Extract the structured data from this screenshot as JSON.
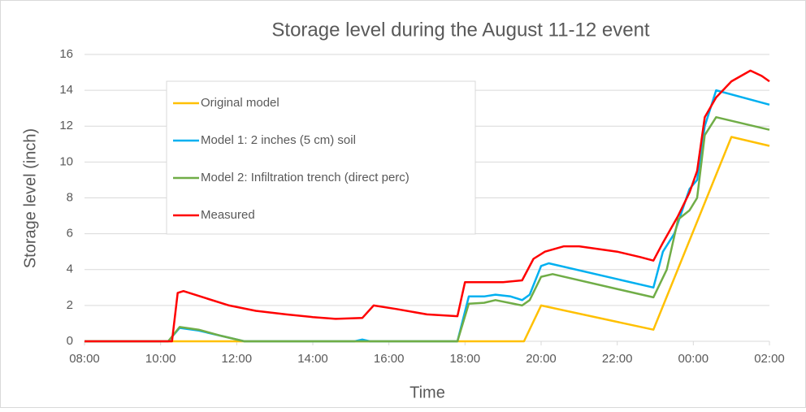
{
  "chart_data": {
    "type": "line",
    "title": "Storage level during the August 11-12 event",
    "x_label": "Time",
    "y_label": "Storage level (inch)",
    "xlim": [
      8,
      26
    ],
    "xticks": [
      {
        "value": 8,
        "label": "08:00"
      },
      {
        "value": 10,
        "label": "10:00"
      },
      {
        "value": 12,
        "label": "12:00"
      },
      {
        "value": 14,
        "label": "14:00"
      },
      {
        "value": 16,
        "label": "16:00"
      },
      {
        "value": 18,
        "label": "18:00"
      },
      {
        "value": 20,
        "label": "20:00"
      },
      {
        "value": 22,
        "label": "22:00"
      },
      {
        "value": 24,
        "label": "00:00"
      },
      {
        "value": 26,
        "label": "02:00"
      }
    ],
    "ylim": [
      0,
      16
    ],
    "yticks": [
      0,
      2,
      4,
      6,
      8,
      10,
      12,
      14,
      16
    ],
    "grid": true,
    "series": [
      {
        "name": "Original model",
        "color": "#ffc000",
        "x": [
          8,
          19.55,
          20.0,
          22.95,
          25.0,
          26
        ],
        "values": [
          0,
          0,
          2.0,
          0.65,
          11.4,
          10.9
        ]
      },
      {
        "name": "Model 1: 2 inches (5 cm) soil",
        "color": "#00b0f0",
        "x": [
          8,
          10.2,
          10.5,
          11,
          11.6,
          12.2,
          15.1,
          15.3,
          15.5,
          17.8,
          18.1,
          18.5,
          18.8,
          19.2,
          19.5,
          19.7,
          20.0,
          20.2,
          22.95,
          23.2,
          23.5,
          23.9,
          24.1,
          24.3,
          24.6,
          26
        ],
        "values": [
          0,
          0,
          0.75,
          0.6,
          0.3,
          0,
          0,
          0.1,
          0,
          0,
          2.5,
          2.5,
          2.6,
          2.5,
          2.3,
          2.6,
          4.2,
          4.35,
          3.0,
          5.0,
          6.0,
          8.5,
          9.0,
          12,
          14.0,
          13.2
        ]
      },
      {
        "name": "Model 2: Infiltration trench (direct perc)",
        "color": "#70ad47",
        "x": [
          8,
          10.2,
          10.5,
          11,
          11.6,
          12.2,
          17.8,
          18.1,
          18.5,
          18.8,
          19.5,
          19.7,
          20.0,
          20.3,
          22.95,
          23.3,
          23.6,
          23.9,
          24.1,
          24.3,
          24.6,
          26
        ],
        "values": [
          0,
          0,
          0.8,
          0.65,
          0.3,
          0,
          0,
          2.1,
          2.15,
          2.3,
          2.0,
          2.3,
          3.6,
          3.75,
          2.45,
          4.0,
          6.8,
          7.3,
          8.0,
          11.5,
          12.5,
          11.8
        ]
      },
      {
        "name": "Measured",
        "color": "#ff0000",
        "x": [
          8,
          10.3,
          10.45,
          10.6,
          11.2,
          11.8,
          12.5,
          13.3,
          14,
          14.6,
          15.3,
          15.6,
          16.2,
          17.0,
          17.8,
          18.0,
          18.5,
          19.0,
          19.5,
          19.8,
          20.1,
          20.6,
          21.0,
          22.0,
          22.6,
          22.95,
          23.2,
          23.6,
          23.9,
          24.1,
          24.3,
          24.6,
          25,
          25.5,
          25.8,
          26
        ],
        "values": [
          0,
          0,
          2.7,
          2.8,
          2.4,
          2.0,
          1.7,
          1.5,
          1.35,
          1.25,
          1.3,
          2.0,
          1.8,
          1.5,
          1.4,
          3.3,
          3.3,
          3.3,
          3.4,
          4.6,
          5.0,
          5.3,
          5.3,
          5.0,
          4.7,
          4.5,
          5.5,
          7.0,
          8.3,
          9.5,
          12.5,
          13.6,
          14.5,
          15.1,
          14.8,
          14.5
        ]
      }
    ]
  }
}
